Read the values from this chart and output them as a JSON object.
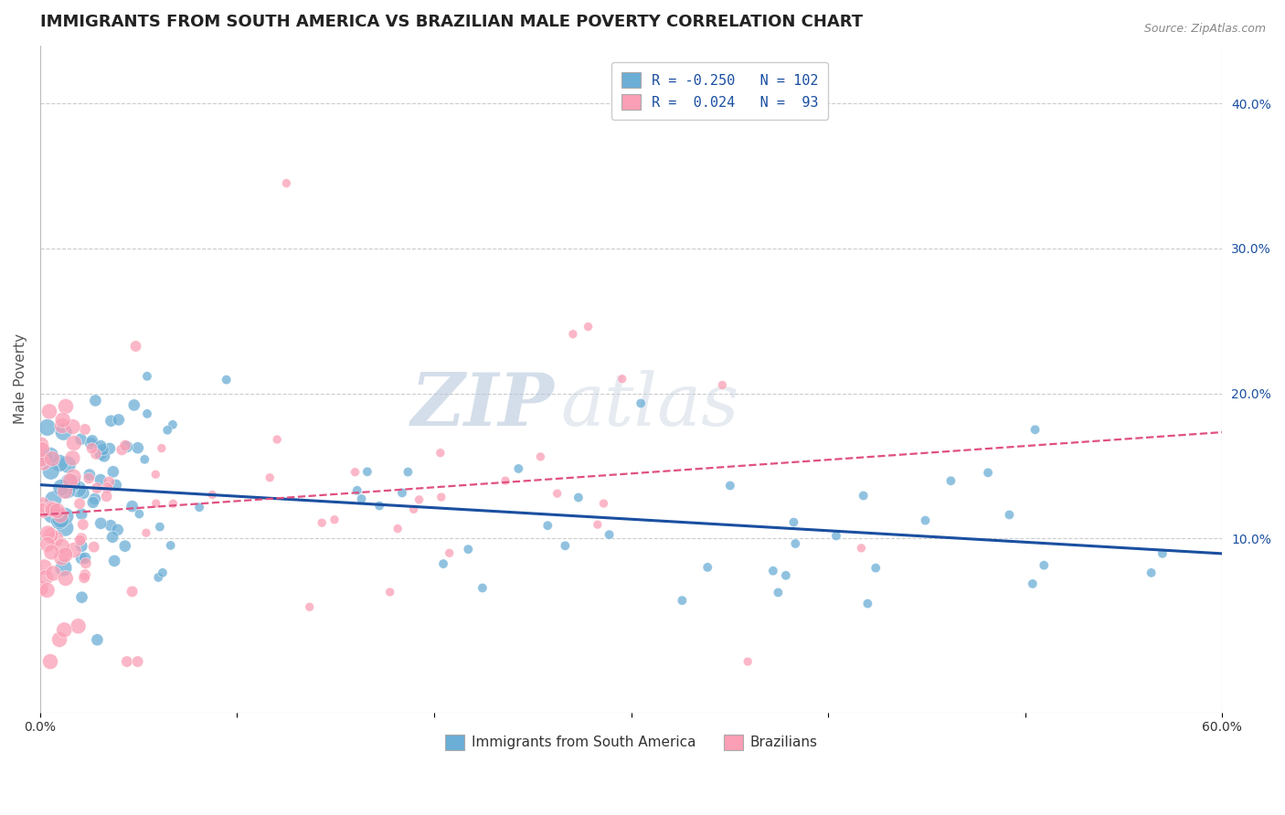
{
  "title": "IMMIGRANTS FROM SOUTH AMERICA VS BRAZILIAN MALE POVERTY CORRELATION CHART",
  "source_text": "Source: ZipAtlas.com",
  "xlabel": "",
  "ylabel": "Male Poverty",
  "watermark_zip": "ZIP",
  "watermark_atlas": "atlas",
  "xlim": [
    0.0,
    0.6
  ],
  "ylim": [
    -0.02,
    0.44
  ],
  "xticks": [
    0.0,
    0.1,
    0.2,
    0.3,
    0.4,
    0.5,
    0.6
  ],
  "xticklabels": [
    "0.0%",
    "",
    "",
    "",
    "",
    "",
    "60.0%"
  ],
  "yticks_right": [
    0.1,
    0.2,
    0.3,
    0.4
  ],
  "ytick_right_labels": [
    "10.0%",
    "20.0%",
    "30.0%",
    "40.0%"
  ],
  "legend_blue_label": "R = -0.250   N = 102",
  "legend_pink_label": "R =  0.024   N =  93",
  "legend_bottom_blue": "Immigrants from South America",
  "legend_bottom_pink": "Brazilians",
  "blue_color": "#6baed6",
  "pink_color": "#fa9fb5",
  "blue_line_color": "#1a4fa0",
  "pink_line_color": "#e05080",
  "N_blue": 102,
  "N_pink": 93,
  "title_fontsize": 13,
  "axis_label_color": "#555555",
  "grid_color": "#cccccc",
  "background_color": "#ffffff",
  "legend_text_color": "#1a4fa0"
}
